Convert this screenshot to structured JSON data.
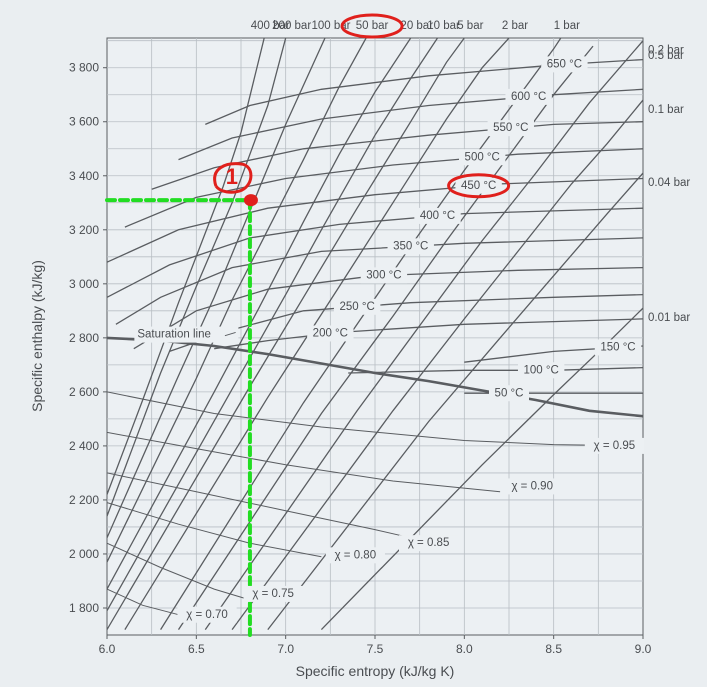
{
  "chart_data": {
    "type": "line",
    "title": "",
    "xlabel": "Specific entropy (kJ/kg K)",
    "ylabel": "Specific enthalpy (kJ/kg)",
    "xlim": [
      6.0,
      9.0
    ],
    "ylim": [
      1700,
      3910
    ],
    "grid": true,
    "x_ticks": [
      {
        "value": 6.0,
        "label": "6.0"
      },
      {
        "value": 6.5,
        "label": "6.5"
      },
      {
        "value": 7.0,
        "label": "7.0"
      },
      {
        "value": 7.5,
        "label": "7.5"
      },
      {
        "value": 8.0,
        "label": "8.0"
      },
      {
        "value": 8.5,
        "label": "8.5"
      },
      {
        "value": 9.0,
        "label": "9.0"
      }
    ],
    "y_ticks": [
      {
        "value": 1800,
        "label": "1 800"
      },
      {
        "value": 2000,
        "label": "2 000"
      },
      {
        "value": 2200,
        "label": "2 200"
      },
      {
        "value": 2400,
        "label": "2 400"
      },
      {
        "value": 2600,
        "label": "2 600"
      },
      {
        "value": 2800,
        "label": "2 800"
      },
      {
        "value": 3000,
        "label": "3 000"
      },
      {
        "value": 3200,
        "label": "3 200"
      },
      {
        "value": 3400,
        "label": "3 400"
      },
      {
        "value": 3600,
        "label": "3 600"
      },
      {
        "value": 3800,
        "label": "3 800"
      }
    ],
    "saturation_line": {
      "label": "Saturation line",
      "points": [
        [
          6.0,
          2800
        ],
        [
          6.3,
          2790
        ],
        [
          6.6,
          2770
        ],
        [
          6.9,
          2740
        ],
        [
          7.2,
          2705
        ],
        [
          7.5,
          2670
        ],
        [
          7.8,
          2640
        ],
        [
          8.1,
          2605
        ],
        [
          8.4,
          2570
        ],
        [
          8.7,
          2530
        ],
        [
          9.0,
          2510
        ]
      ]
    },
    "isobars": [
      {
        "label": "400 bar",
        "points": [
          [
            6.0,
            2220
          ],
          [
            6.2,
            2570
          ],
          [
            6.4,
            2930
          ],
          [
            6.65,
            3360
          ],
          [
            6.75,
            3560
          ],
          [
            6.88,
            3910
          ]
        ]
      },
      {
        "label": "200 bar",
        "points": [
          [
            6.0,
            2140
          ],
          [
            6.3,
            2670
          ],
          [
            6.5,
            2990
          ],
          [
            6.7,
            3300
          ],
          [
            6.9,
            3660
          ],
          [
            7.0,
            3910
          ]
        ]
      },
      {
        "label": "100 bar",
        "points": [
          [
            6.0,
            2060
          ],
          [
            6.4,
            2660
          ],
          [
            6.6,
            2950
          ],
          [
            6.8,
            3270
          ],
          [
            7.0,
            3590
          ],
          [
            7.22,
            3910
          ]
        ]
      },
      {
        "label": "50 bar",
        "points": [
          [
            6.0,
            1970
          ],
          [
            6.5,
            2650
          ],
          [
            6.7,
            2940
          ],
          [
            6.9,
            3200
          ],
          [
            7.1,
            3460
          ],
          [
            7.3,
            3730
          ],
          [
            7.45,
            3910
          ]
        ]
      },
      {
        "label": "20 bar",
        "points": [
          [
            6.0,
            1870
          ],
          [
            6.6,
            2600
          ],
          [
            6.85,
            2910
          ],
          [
            7.1,
            3230
          ],
          [
            7.3,
            3480
          ],
          [
            7.5,
            3710
          ],
          [
            7.7,
            3910
          ]
        ]
      },
      {
        "label": "10 bar",
        "points": [
          [
            6.0,
            1790
          ],
          [
            6.7,
            2610
          ],
          [
            7.0,
            2960
          ],
          [
            7.2,
            3200
          ],
          [
            7.5,
            3550
          ],
          [
            7.7,
            3760
          ],
          [
            7.85,
            3910
          ]
        ]
      },
      {
        "label": "5 bar",
        "points": [
          [
            6.0,
            1720
          ],
          [
            6.8,
            2620
          ],
          [
            7.1,
            2950
          ],
          [
            7.4,
            3280
          ],
          [
            7.7,
            3600
          ],
          [
            7.9,
            3820
          ],
          [
            8.0,
            3910
          ]
        ]
      },
      {
        "label": "2 bar",
        "points": [
          [
            6.1,
            1720
          ],
          [
            6.9,
            2580
          ],
          [
            7.3,
            2990
          ],
          [
            7.6,
            3300
          ],
          [
            7.9,
            3610
          ],
          [
            8.1,
            3800
          ],
          [
            8.25,
            3910
          ]
        ]
      },
      {
        "label": "1 bar",
        "points": [
          [
            6.3,
            1720
          ],
          [
            7.1,
            2560
          ],
          [
            7.4,
            2850
          ],
          [
            7.7,
            3140
          ],
          [
            8.0,
            3420
          ],
          [
            8.3,
            3690
          ],
          [
            8.5,
            3870
          ],
          [
            8.54,
            3910
          ]
        ]
      },
      {
        "label": "0.5 bar",
        "points": [
          [
            6.4,
            1720
          ],
          [
            7.2,
            2520
          ],
          [
            7.6,
            2880
          ],
          [
            7.9,
            3160
          ],
          [
            8.2,
            3430
          ],
          [
            8.5,
            3700
          ],
          [
            8.72,
            3880
          ]
        ]
      },
      {
        "label": "0.2 bar",
        "points": [
          [
            6.55,
            1720
          ],
          [
            7.4,
            2530
          ],
          [
            7.8,
            2890
          ],
          [
            8.1,
            3160
          ],
          [
            8.4,
            3410
          ],
          [
            8.7,
            3670
          ],
          [
            9.0,
            3900
          ]
        ]
      },
      {
        "label": "0.1 bar",
        "points": [
          [
            6.7,
            1720
          ],
          [
            7.6,
            2530
          ],
          [
            8.0,
            2870
          ],
          [
            8.3,
            3120
          ],
          [
            8.6,
            3370
          ],
          [
            8.8,
            3520
          ],
          [
            9.0,
            3680
          ]
        ]
      },
      {
        "label": "0.04 bar",
        "points": [
          [
            6.9,
            1720
          ],
          [
            7.8,
            2490
          ],
          [
            8.2,
            2800
          ],
          [
            8.5,
            3030
          ],
          [
            8.8,
            3260
          ],
          [
            9.0,
            3410
          ]
        ]
      },
      {
        "label": "0.01 bar",
        "points": [
          [
            7.2,
            1720
          ],
          [
            8.1,
            2330
          ],
          [
            8.5,
            2590
          ],
          [
            8.8,
            2780
          ],
          [
            9.0,
            2910
          ]
        ]
      }
    ],
    "isotherms": [
      {
        "label": "650 °C",
        "points": [
          [
            6.55,
            3590
          ],
          [
            6.8,
            3660
          ],
          [
            7.2,
            3720
          ],
          [
            7.8,
            3770
          ],
          [
            8.5,
            3810
          ],
          [
            9.0,
            3830
          ]
        ]
      },
      {
        "label": "600 °C",
        "points": [
          [
            6.4,
            3460
          ],
          [
            6.7,
            3540
          ],
          [
            7.2,
            3610
          ],
          [
            7.8,
            3660
          ],
          [
            8.5,
            3700
          ],
          [
            9.0,
            3720
          ]
        ]
      },
      {
        "label": "550 °C",
        "points": [
          [
            6.25,
            3350
          ],
          [
            6.6,
            3430
          ],
          [
            7.1,
            3500
          ],
          [
            7.8,
            3550
          ],
          [
            8.5,
            3590
          ],
          [
            9.0,
            3600
          ]
        ]
      },
      {
        "label": "500 °C",
        "points": [
          [
            6.1,
            3210
          ],
          [
            6.5,
            3320
          ],
          [
            7.0,
            3390
          ],
          [
            7.6,
            3440
          ],
          [
            8.3,
            3480
          ],
          [
            9.0,
            3500
          ]
        ]
      },
      {
        "label": "450 °C",
        "points": [
          [
            6.0,
            3080
          ],
          [
            6.4,
            3200
          ],
          [
            6.9,
            3280
          ],
          [
            7.5,
            3330
          ],
          [
            8.2,
            3370
          ],
          [
            9.0,
            3390
          ]
        ]
      },
      {
        "label": "400 °C",
        "points": [
          [
            6.0,
            2950
          ],
          [
            6.35,
            3070
          ],
          [
            6.8,
            3170
          ],
          [
            7.3,
            3220
          ],
          [
            8.0,
            3260
          ],
          [
            9.0,
            3280
          ]
        ]
      },
      {
        "label": "350 °C",
        "points": [
          [
            6.05,
            2850
          ],
          [
            6.3,
            2950
          ],
          [
            6.7,
            3060
          ],
          [
            7.2,
            3120
          ],
          [
            8.0,
            3150
          ],
          [
            9.0,
            3170
          ]
        ]
      },
      {
        "label": "300 °C",
        "points": [
          [
            6.15,
            2760
          ],
          [
            6.5,
            2900
          ],
          [
            6.9,
            2980
          ],
          [
            7.5,
            3030
          ],
          [
            8.3,
            3050
          ],
          [
            9.0,
            3060
          ]
        ]
      },
      {
        "label": "250 °C",
        "points": [
          [
            6.35,
            2750
          ],
          [
            6.7,
            2830
          ],
          [
            7.1,
            2900
          ],
          [
            7.7,
            2930
          ],
          [
            8.5,
            2950
          ],
          [
            9.0,
            2960
          ]
        ]
      },
      {
        "label": "200 °C",
        "points": [
          [
            6.6,
            2760
          ],
          [
            6.9,
            2790
          ],
          [
            7.3,
            2820
          ],
          [
            8.0,
            2850
          ],
          [
            9.0,
            2870
          ]
        ]
      },
      {
        "label": "150 °C",
        "points": [
          [
            8.0,
            2710
          ],
          [
            8.5,
            2750
          ],
          [
            9.0,
            2770
          ]
        ]
      },
      {
        "label": "100 °C",
        "points": [
          [
            7.35,
            2670
          ],
          [
            8.0,
            2680
          ],
          [
            8.5,
            2680
          ],
          [
            9.0,
            2690
          ]
        ]
      },
      {
        "label": "50 °C",
        "points": [
          [
            8.0,
            2595
          ],
          [
            8.5,
            2595
          ],
          [
            9.0,
            2595
          ]
        ]
      }
    ],
    "quality_lines": [
      {
        "label": "χ = 0.95",
        "points": [
          [
            6.0,
            2600
          ],
          [
            6.6,
            2520
          ],
          [
            7.2,
            2470
          ],
          [
            8.0,
            2420
          ],
          [
            8.5,
            2405
          ],
          [
            9.0,
            2400
          ]
        ]
      },
      {
        "label": "χ = 0.90",
        "points": [
          [
            6.0,
            2450
          ],
          [
            6.5,
            2390
          ],
          [
            7.0,
            2330
          ],
          [
            7.6,
            2270
          ],
          [
            8.2,
            2230
          ]
        ]
      },
      {
        "label": "χ = 0.85",
        "points": [
          [
            6.0,
            2300
          ],
          [
            6.5,
            2230
          ],
          [
            7.0,
            2160
          ],
          [
            7.5,
            2090
          ],
          [
            7.7,
            2060
          ]
        ]
      },
      {
        "label": "χ = 0.80",
        "points": [
          [
            6.0,
            2190
          ],
          [
            6.4,
            2110
          ],
          [
            6.8,
            2040
          ],
          [
            7.2,
            1990
          ]
        ]
      },
      {
        "label": "χ = 0.75",
        "points": [
          [
            6.0,
            2040
          ],
          [
            6.3,
            1950
          ],
          [
            6.6,
            1870
          ],
          [
            6.8,
            1830
          ]
        ]
      },
      {
        "label": "χ = 0.70",
        "points": [
          [
            6.0,
            1870
          ],
          [
            6.2,
            1810
          ],
          [
            6.4,
            1775
          ],
          [
            6.5,
            1760
          ]
        ]
      }
    ],
    "marked_point": {
      "label": "1",
      "s": 6.8,
      "h": 3310
    },
    "guide_lines": {
      "color": "#22dd22",
      "horizontal_to": 6.0,
      "vertical_to": 1700
    },
    "highlighted_labels": [
      "50 bar",
      "450 °C"
    ],
    "colors": {
      "background": "#eaeef1",
      "plot_background": "#ecf0f3",
      "grid": "#b8bec4",
      "curves": "#5a5d61",
      "saturation": "#5a5d61",
      "annotation_red": "#e0201c",
      "guide_green": "#22dd22",
      "text": "#4a4d51"
    }
  }
}
